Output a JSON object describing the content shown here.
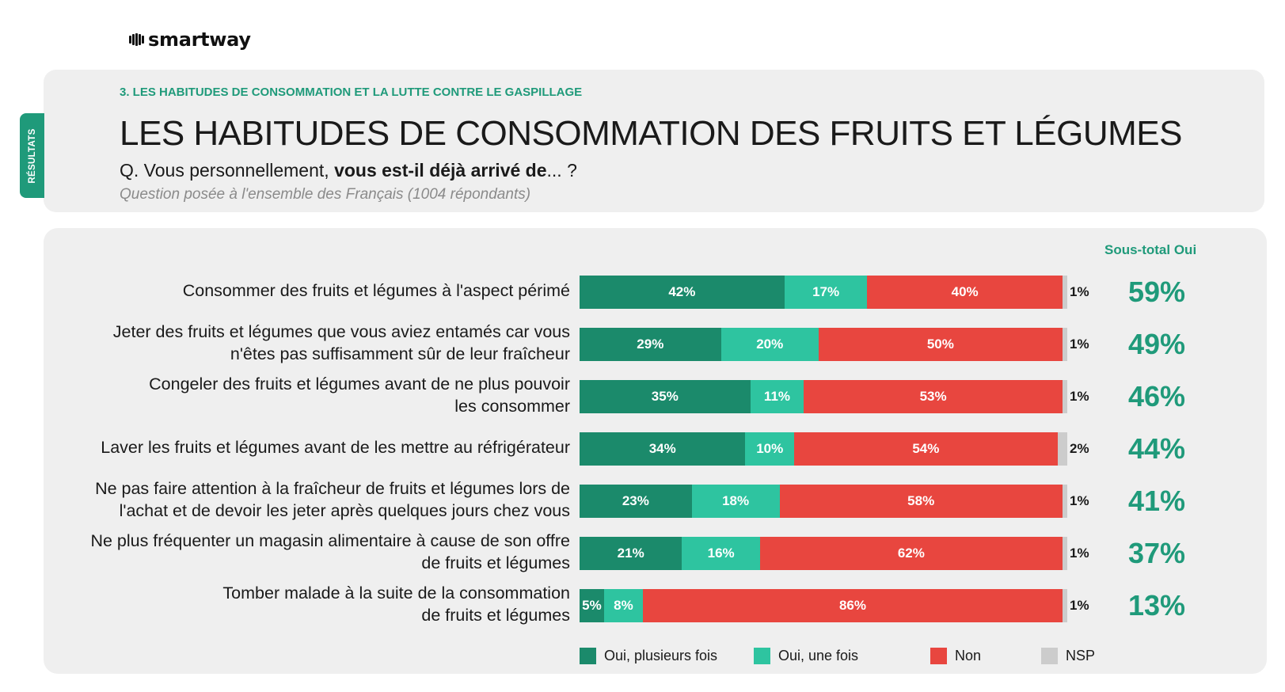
{
  "logo": {
    "text": "smartway"
  },
  "side_tab": {
    "label": "RÉSULTATS"
  },
  "header": {
    "section": "3. LES HABITUDES DE CONSOMMATION ET LA LUTTE CONTRE LE GASPILLAGE",
    "title": "LES HABITUDES DE CONSOMMATION DES FRUITS ET LÉGUMES",
    "question_prefix": "Q. Vous personnellement, ",
    "question_bold": "vous est-il déjà arrivé de",
    "question_suffix": "... ?",
    "note": "Question posée à l'ensemble des Français (1004 répondants)"
  },
  "colors": {
    "oui_plusieurs": "#1b8a6b",
    "oui_une": "#2ec4a0",
    "non": "#e8463f",
    "nsp": "#cccccc",
    "accent": "#1f9a7a"
  },
  "chart_data": {
    "type": "bar",
    "orientation": "horizontal",
    "stacked": true,
    "unit": "%",
    "categories": [
      [
        "Consommer des fruits et légumes à l'aspect périmé"
      ],
      [
        "Jeter des fruits et légumes que vous aviez entamés car vous",
        "n'êtes pas suffisamment sûr de leur fraîcheur"
      ],
      [
        "Congeler des fruits et légumes avant de ne plus pouvoir",
        "les consommer"
      ],
      [
        "Laver les fruits et légumes avant de les mettre au réfrigérateur"
      ],
      [
        "Ne pas faire attention à la fraîcheur de fruits et légumes lors de",
        "l'achat et de devoir les jeter après quelques jours chez vous"
      ],
      [
        "Ne plus fréquenter un magasin alimentaire à cause de son offre",
        "de fruits et légumes"
      ],
      [
        "Tomber malade à la suite de la consommation",
        "de fruits et légumes"
      ]
    ],
    "series": [
      {
        "name": "Oui, plusieurs fois",
        "values": [
          42,
          29,
          35,
          34,
          23,
          21,
          5
        ]
      },
      {
        "name": "Oui, une fois",
        "values": [
          17,
          20,
          11,
          10,
          18,
          16,
          8
        ]
      },
      {
        "name": "Non",
        "values": [
          40,
          50,
          53,
          54,
          58,
          62,
          86
        ]
      },
      {
        "name": "NSP",
        "values": [
          1,
          1,
          1,
          2,
          1,
          1,
          1
        ]
      }
    ],
    "subtotal_title": "Sous-total Oui",
    "subtotal_values": [
      59,
      49,
      46,
      44,
      41,
      37,
      13
    ],
    "legend_position": "bottom"
  }
}
